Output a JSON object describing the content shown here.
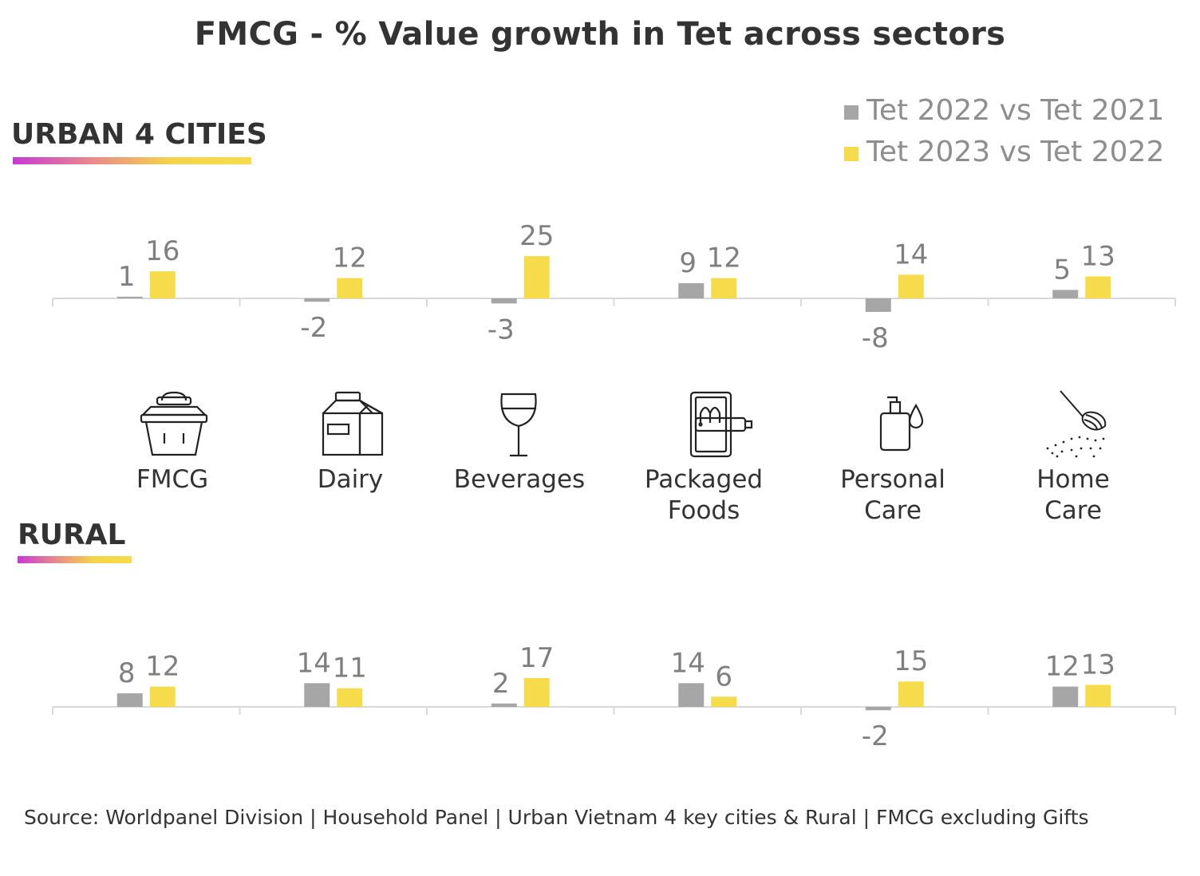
{
  "title": "FMCG - % Value growth in Tet across sectors",
  "legend": [
    {
      "label": "Tet 2022 vs Tet 2021",
      "color": "#a6a6a6"
    },
    {
      "label": "Tet 2023 vs Tet 2022",
      "color": "#f6dc4a"
    }
  ],
  "categories": [
    {
      "label_lines": [
        "FMCG"
      ],
      "icon": "basket-icon"
    },
    {
      "label_lines": [
        "Dairy"
      ],
      "icon": "milk-carton-icon"
    },
    {
      "label_lines": [
        "Beverages"
      ],
      "icon": "wine-glass-icon"
    },
    {
      "label_lines": [
        "Packaged",
        "Foods"
      ],
      "icon": "canned-fish-icon"
    },
    {
      "label_lines": [
        "Personal",
        "Care"
      ],
      "icon": "pump-bottle-icon"
    },
    {
      "label_lines": [
        "Home",
        "Care"
      ],
      "icon": "whisk-icon"
    }
  ],
  "source": "Source: Worldpanel Division | Household Panel | Urban Vietnam 4 key cities & Rural | FMCG excluding Gifts",
  "chart_data": [
    {
      "type": "bar",
      "title": "URBAN 4 CITIES",
      "categories": [
        "FMCG",
        "Dairy",
        "Beverages",
        "Packaged Foods",
        "Personal Care",
        "Home Care"
      ],
      "series": [
        {
          "name": "Tet 2022 vs Tet 2021",
          "color": "#a6a6a6",
          "values": [
            1,
            -2,
            -3,
            9,
            -8,
            5
          ]
        },
        {
          "name": "Tet 2023 vs Tet 2022",
          "color": "#f6dc4a",
          "values": [
            16,
            12,
            25,
            12,
            14,
            13
          ]
        }
      ],
      "legend_position": "top-right",
      "grid": false
    },
    {
      "type": "bar",
      "title": "RURAL",
      "categories": [
        "FMCG",
        "Dairy",
        "Beverages",
        "Packaged Foods",
        "Personal Care",
        "Home Care"
      ],
      "series": [
        {
          "name": "Tet 2022 vs Tet 2021",
          "color": "#a6a6a6",
          "values": [
            8,
            14,
            2,
            14,
            -2,
            12
          ]
        },
        {
          "name": "Tet 2023 vs Tet 2022",
          "color": "#f6dc4a",
          "values": [
            12,
            11,
            17,
            6,
            15,
            13
          ]
        }
      ],
      "grid": false
    }
  ]
}
